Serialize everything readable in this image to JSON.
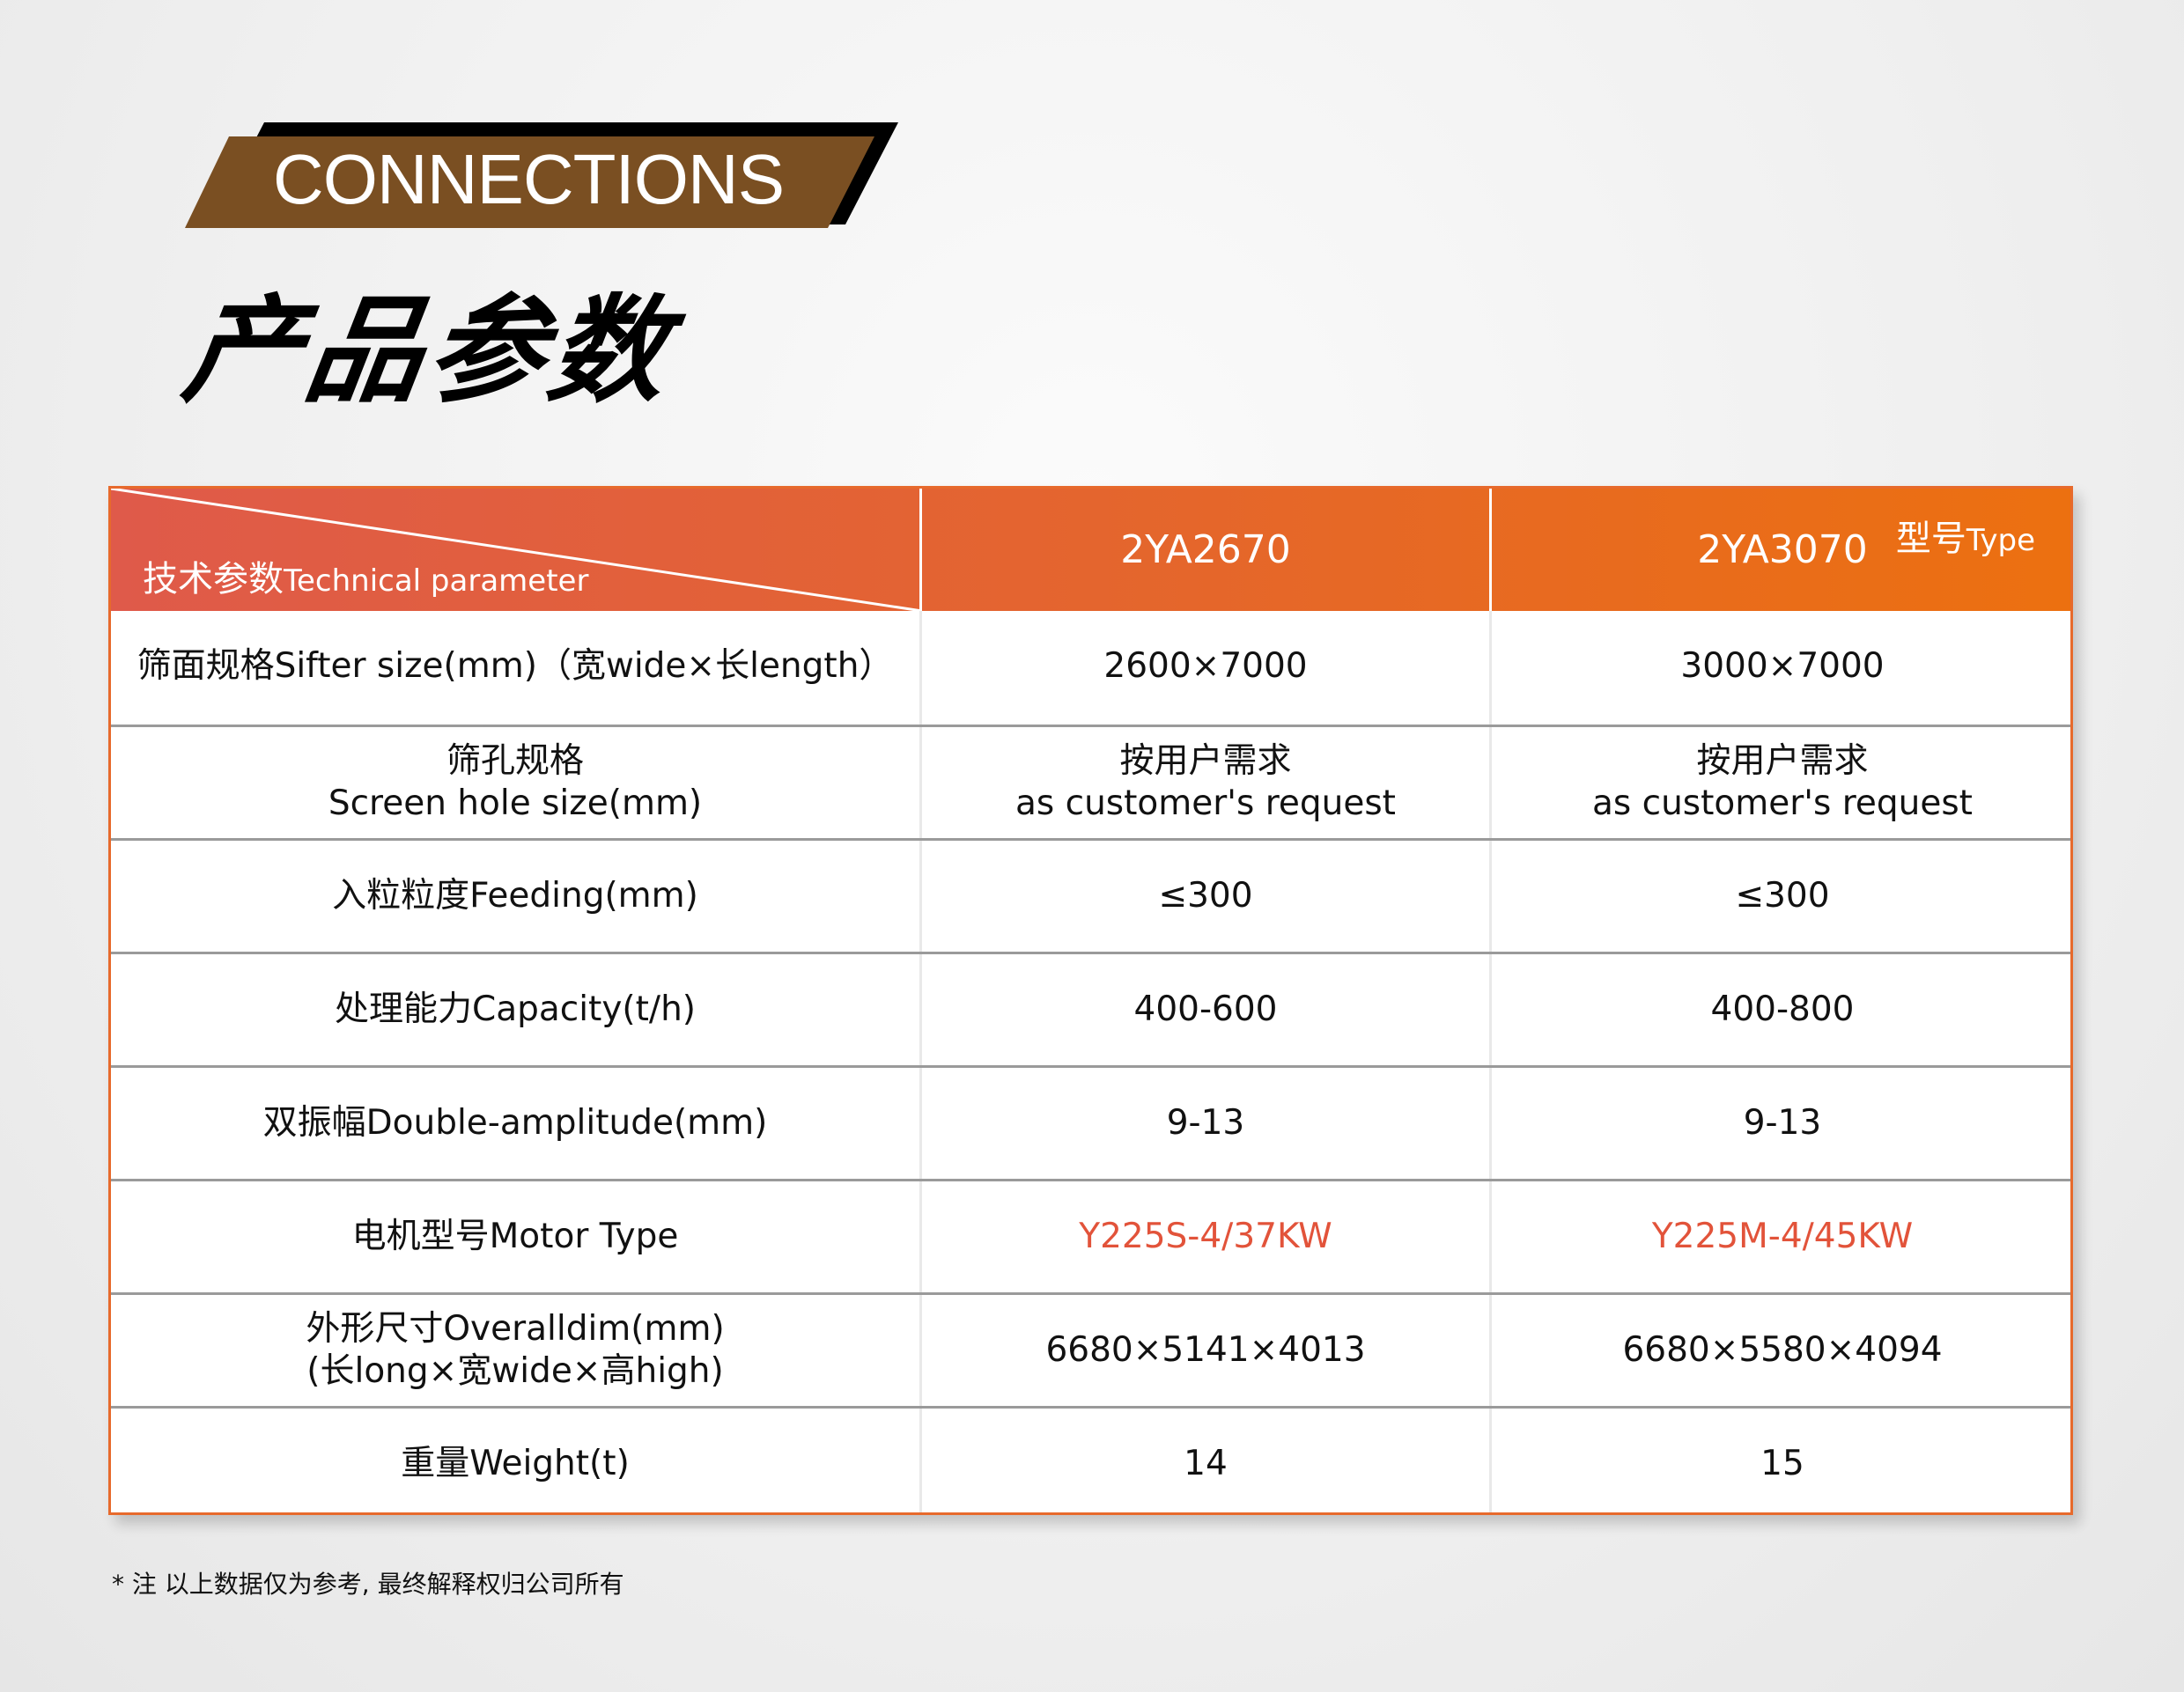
{
  "banner": {
    "label": "CONNECTIONS",
    "colors": {
      "brown": "#7a4f22",
      "black": "#000000"
    }
  },
  "page_title": "产品参数",
  "table": {
    "header": {
      "corner_top_right": {
        "cn": "型号",
        "en": "Type"
      },
      "corner_bottom_left": {
        "cn": "技术参数",
        "en": "Technical parameter"
      },
      "models": [
        "2YA2670",
        "2YA3070"
      ]
    },
    "rows": [
      {
        "param": [
          "筛面规格Sifter size(mm)（宽wide×长length）"
        ],
        "values": [
          "2600×7000",
          "3000×7000"
        ]
      },
      {
        "param": [
          "筛孔规格",
          "Screen hole size(mm)"
        ],
        "values": [
          [
            "按用户需求",
            "as customer's request"
          ],
          [
            "按用户需求",
            "as customer's request"
          ]
        ]
      },
      {
        "param": [
          "入粒粒度Feeding(mm)"
        ],
        "values": [
          "≤300",
          "≤300"
        ]
      },
      {
        "param": [
          "处理能力Capacity(t/h)"
        ],
        "values": [
          "400-600",
          "400-800"
        ]
      },
      {
        "param": [
          "双振幅Double-amplitude(mm)"
        ],
        "values": [
          "9-13",
          "9-13"
        ]
      },
      {
        "param": [
          "电机型号Motor Type"
        ],
        "values": [
          "Y225S-4/37KW",
          "Y225M-4/45KW"
        ],
        "highlight": true
      },
      {
        "param": [
          "外形尺寸Overalldim(mm)",
          "(长long×宽wide×高high)"
        ],
        "values": [
          "6680×5141×4013",
          "6680×5580×4094"
        ]
      },
      {
        "param": [
          "重量Weight(t)"
        ],
        "values": [
          "14",
          "15"
        ]
      }
    ],
    "colors": {
      "header_start": "#df5a4a",
      "header_end": "#ec7010",
      "highlight_text": "#e2533a",
      "row_divider": "#9a9a9a"
    }
  },
  "footnote": "* 注   以上数据仅为参考, 最终解释权归公司所有"
}
